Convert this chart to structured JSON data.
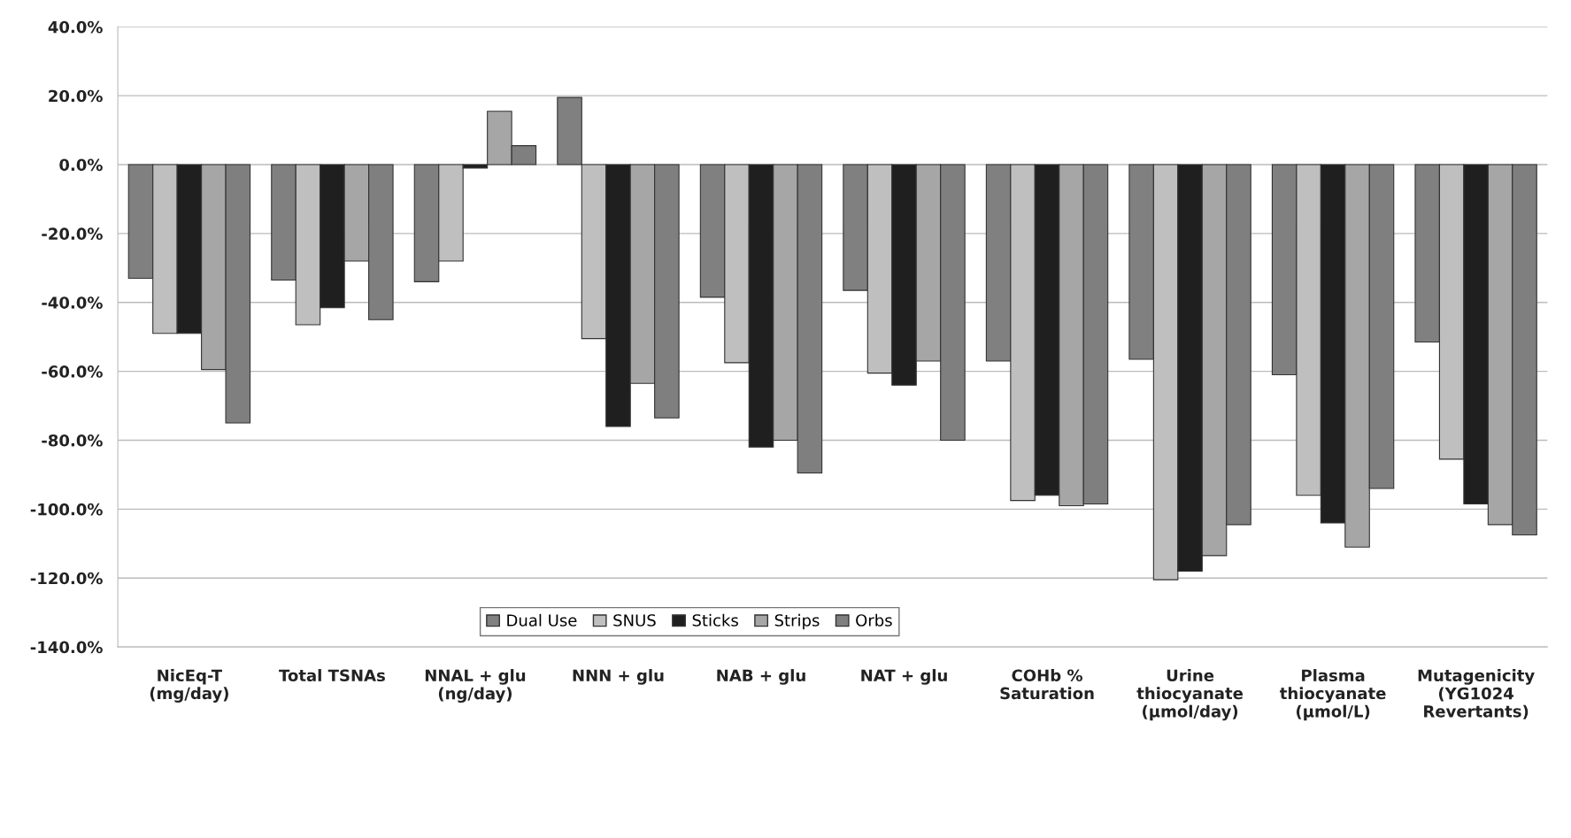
{
  "chart_data": {
    "type": "bar",
    "categories": [
      "NicEq-T\n(mg/day)",
      "Total TSNAs",
      "NNAL + glu\n(ng/day)",
      "NNN + glu",
      "NAB + glu",
      "NAT + glu",
      "COHb %\nSaturation",
      "Urine\nthiocyanate\n(µmol/day)",
      "Plasma\nthiocyanate\n(µmol/L)",
      "Mutagenicity\n(YG1024\nRevertants)"
    ],
    "series": [
      {
        "name": "Dual Use",
        "color": "#808080",
        "values": [
          -33,
          -33.5,
          -34,
          19.5,
          -38.5,
          -36.5,
          -57,
          -56.5,
          -61,
          -51.5
        ]
      },
      {
        "name": "SNUS",
        "color": "#bfbfbf",
        "values": [
          -49,
          -46.5,
          -28,
          -50.5,
          -57.5,
          -60.5,
          -97.5,
          -120.5,
          -96,
          -85.5
        ]
      },
      {
        "name": "Sticks",
        "color": "#1f1f1f",
        "values": [
          -49,
          -41.5,
          -1,
          -76,
          -82,
          -64,
          -96,
          -118,
          -104,
          -98.5
        ]
      },
      {
        "name": "Strips",
        "color": "#a6a6a6",
        "values": [
          -59.5,
          -28,
          15.5,
          -63.5,
          -80,
          -57,
          -99,
          -113.5,
          -111,
          -104.5
        ]
      },
      {
        "name": "Orbs",
        "color": "#7f7f7f",
        "values": [
          -75,
          -45,
          5.5,
          -73.5,
          -89.5,
          -80,
          -98.5,
          -104.5,
          -94,
          -107.5
        ]
      }
    ],
    "ylim": [
      -140,
      40
    ],
    "yticks": [
      {
        "value": -140,
        "label": "-140.0%"
      },
      {
        "value": -120,
        "label": "-120.0%"
      },
      {
        "value": -100,
        "label": "-100.0%"
      },
      {
        "value": -80,
        "label": "-80.0%"
      },
      {
        "value": -60,
        "label": "-60.0%"
      },
      {
        "value": -40,
        "label": "-40.0%"
      },
      {
        "value": -20,
        "label": "-20.0%"
      },
      {
        "value": 0,
        "label": "0.0%"
      },
      {
        "value": 20,
        "label": "20.0%"
      },
      {
        "value": 40,
        "label": "40.0%"
      }
    ],
    "grid": "y",
    "legend": "bottom"
  }
}
